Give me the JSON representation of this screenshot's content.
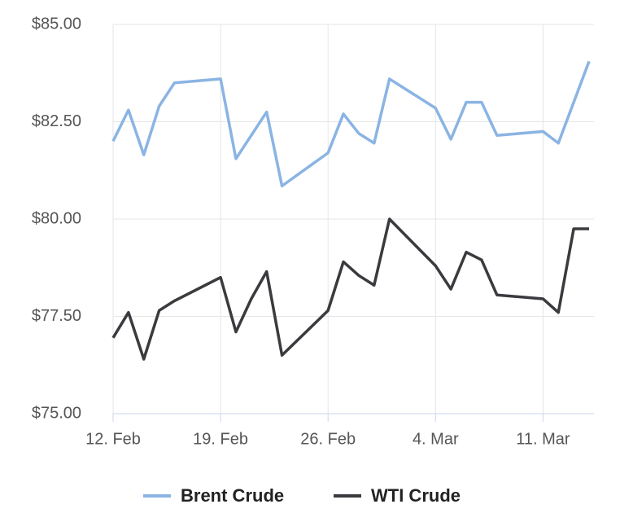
{
  "chart_data": {
    "type": "line",
    "x": [
      "12. Feb",
      "13. Feb",
      "14. Feb",
      "15. Feb",
      "16. Feb",
      "19. Feb",
      "20. Feb",
      "21. Feb",
      "22. Feb",
      "23. Feb",
      "26. Feb",
      "27. Feb",
      "28. Feb",
      "29. Feb",
      "1. Mar",
      "4. Mar",
      "5. Mar",
      "6. Mar",
      "7. Mar",
      "8. Mar",
      "11. Mar",
      "12. Mar",
      "13. Mar",
      "14. Mar"
    ],
    "series": [
      {
        "name": "Brent Crude",
        "color": "#8ab4e3",
        "values": [
          82.0,
          82.8,
          81.65,
          82.9,
          83.5,
          83.6,
          81.55,
          82.15,
          82.75,
          80.85,
          81.7,
          82.7,
          82.2,
          81.95,
          83.6,
          82.85,
          82.05,
          83.0,
          83.0,
          82.15,
          82.25,
          81.95,
          83.0,
          84.05
        ]
      },
      {
        "name": "WTI Crude",
        "color": "#3a3a3f",
        "values": [
          76.95,
          77.6,
          76.4,
          77.65,
          77.9,
          78.5,
          77.1,
          77.95,
          78.65,
          76.5,
          77.65,
          78.9,
          78.55,
          78.3,
          80.0,
          78.8,
          78.2,
          79.15,
          78.95,
          78.05,
          77.95,
          77.6,
          79.75,
          79.75
        ]
      }
    ],
    "xlim": [
      "12. Feb",
      "14. Mar"
    ],
    "xticks": [
      "12. Feb",
      "19. Feb",
      "26. Feb",
      "4. Mar",
      "11. Mar"
    ],
    "ylim": [
      75,
      85
    ],
    "yticks": [
      {
        "value": 75,
        "label": "$75.00"
      },
      {
        "value": 77.5,
        "label": "$77.50"
      },
      {
        "value": 80,
        "label": "$80.00"
      },
      {
        "value": 82.5,
        "label": "$82.50"
      },
      {
        "value": 85,
        "label": "$85.00"
      }
    ],
    "grid": true,
    "legend": "bottom"
  }
}
